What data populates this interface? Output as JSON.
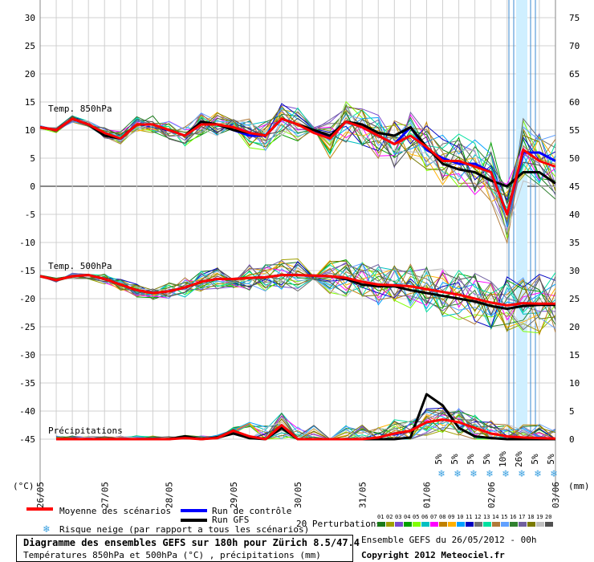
{
  "chart_data": {
    "type": "line",
    "left_axis_unit": "(°C)",
    "right_axis_unit": "(mm)",
    "left_ticks": [
      30,
      25,
      20,
      15,
      10,
      5,
      0,
      -5,
      -10,
      -15,
      -20,
      -25,
      -30,
      -35,
      -40,
      -45
    ],
    "right_ticks": [
      75,
      70,
      65,
      60,
      55,
      50,
      45,
      40,
      35,
      30,
      25,
      20,
      15,
      10,
      5,
      0
    ],
    "x_labels": [
      "26/05",
      "27/05",
      "28/05",
      "29/05",
      "30/05",
      "31/05",
      "01/06",
      "02/06",
      "03/06"
    ],
    "section_labels": {
      "t850": "Temp. 850hPa",
      "t500": "Temp. 500hPa",
      "precip": "Précipitations"
    },
    "snow_risk": [
      "5%",
      "5%",
      "5%",
      "5%",
      "10%",
      "26%",
      "5%",
      "5%"
    ],
    "series": [
      {
        "name": "Moyenne des scénarios (850hPa)",
        "color": "#ff0000",
        "values": [
          10.5,
          10,
          12,
          11,
          9.5,
          8.5,
          11,
          11,
          10,
          9,
          11,
          11,
          10.5,
          9.5,
          9,
          12,
          11,
          9.5,
          8.5,
          11.5,
          10.5,
          9,
          7.5,
          9,
          7,
          4.5,
          4.5,
          3.5,
          2.5,
          -5,
          6.5,
          4.5,
          3.5
        ]
      },
      {
        "name": "Run de contrôle (850hPa)",
        "color": "#0000ff",
        "values": [
          10.5,
          10,
          12,
          11,
          9,
          8.5,
          11,
          11,
          10,
          9,
          11.5,
          11,
          10,
          9,
          9,
          12,
          11,
          10,
          8.5,
          11.5,
          10.5,
          9,
          7.5,
          10.5,
          6.5,
          5,
          4,
          4,
          2.5,
          -5,
          6,
          6,
          4.5
        ]
      },
      {
        "name": "Run GFS (850hPa)",
        "color": "#000000",
        "values": [
          10.5,
          10,
          12,
          11,
          9,
          8.5,
          11,
          11,
          10,
          9,
          11.5,
          11,
          10,
          9.5,
          9,
          12,
          11,
          10,
          9,
          11.5,
          11,
          9.5,
          9,
          10.5,
          7,
          4,
          3,
          2.5,
          1,
          0,
          2.5,
          2.5,
          0.5
        ]
      },
      {
        "name": "Moyenne des scénarios (500hPa)",
        "color": "#ff0000",
        "values": [
          -16,
          -16.7,
          -16,
          -15.8,
          -16.5,
          -17.5,
          -18.5,
          -19,
          -18.7,
          -18,
          -17,
          -16.5,
          -16.5,
          -16.3,
          -16.2,
          -15.8,
          -15.8,
          -15.9,
          -16,
          -16.3,
          -17,
          -17.5,
          -17.6,
          -17.8,
          -18.3,
          -18.8,
          -19.3,
          -20,
          -20.7,
          -21.2,
          -20.8,
          -20.9,
          -20.9
        ]
      },
      {
        "name": "Run GFS (500hPa)",
        "color": "#000000",
        "values": [
          -16,
          -16.7,
          -16,
          -15.8,
          -16.5,
          -17.5,
          -18.5,
          -19,
          -18.7,
          -18,
          -17,
          -16.5,
          -16.5,
          -16.3,
          -16.2,
          -15.8,
          -15.8,
          -15.9,
          -16,
          -16.5,
          -17.5,
          -17.8,
          -17.8,
          -18.5,
          -19,
          -19.5,
          -20,
          -20.5,
          -21.3,
          -21.8,
          -21.3,
          -21.1,
          -21.1
        ]
      },
      {
        "name": "Moyenne des scénarios (précipitations)",
        "color": "#ff0000",
        "values": [
          null,
          0,
          0,
          0,
          0,
          0,
          0,
          0,
          0,
          0.2,
          0,
          0.2,
          1.5,
          0.5,
          0,
          2.5,
          0,
          0,
          0,
          0,
          0,
          0.3,
          1,
          1.5,
          3,
          3.5,
          3,
          2,
          1,
          0.5,
          0.3,
          0.2,
          0.1
        ]
      },
      {
        "name": "Run GFS (précipitations)",
        "color": "#000000",
        "values": [
          null,
          0,
          0,
          0,
          0,
          0,
          0,
          0,
          0,
          0.5,
          0,
          0.3,
          1,
          0.2,
          0,
          2,
          0,
          0,
          0,
          0,
          0,
          0,
          0,
          0.3,
          8,
          6,
          2,
          0.5,
          0.2,
          0,
          0,
          0,
          0
        ]
      }
    ],
    "perturbation_colors": [
      "#1a7a1a",
      "#a0a000",
      "#7a4ad0",
      "#00a000",
      "#80ff00",
      "#00c0c0",
      "#ff00ff",
      "#c08000",
      "#ffb000",
      "#00a0ff",
      "#0000c0",
      "#707070",
      "#00e0a0",
      "#b07a3a",
      "#60a0ff",
      "#308030",
      "#7060a0",
      "#7a7a00",
      "#c0c0c0",
      "#505050"
    ]
  },
  "legend": {
    "mean_label": "Moyenne des scénarios",
    "control_label": "Run de contrôle",
    "gfs_label": "Run GFS",
    "snow_label": "Risque neige (par rapport a tous les scénarios)",
    "pert_label": "20 Perturbations",
    "pert_numbers": [
      "01",
      "02",
      "03",
      "04",
      "05",
      "06",
      "07",
      "08",
      "09",
      "10",
      "11",
      "12",
      "13",
      "14",
      "15",
      "16",
      "17",
      "18",
      "19",
      "20"
    ],
    "ensemble_label": "Ensemble GEFS du 26/05/2012 - 00h",
    "copyright": "Copyright 2012 Meteociel.fr"
  },
  "title": {
    "line1": "Diagramme des ensembles GEFS sur 180h pour Zürich 8.5/47.4",
    "line2": "Températures 850hPa et 500hPa (°C) , précipitations (mm)"
  },
  "colors": {
    "mean": "#ff0000",
    "control": "#0000ff",
    "gfs": "#000000",
    "grid": "#c8c8c8",
    "highlight": "#cfefff"
  }
}
